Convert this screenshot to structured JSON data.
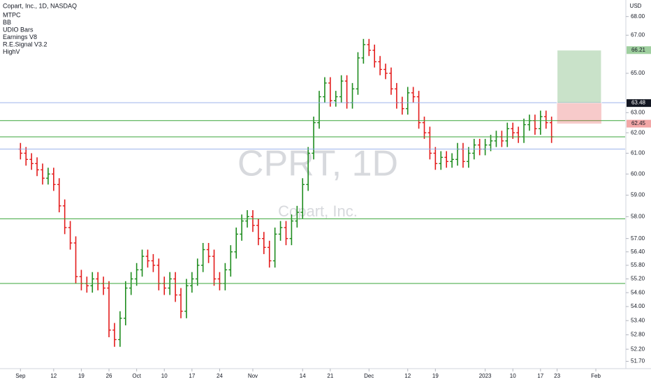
{
  "chart_data": {
    "type": "ohlc",
    "title": "Copart, Inc., 1D, NASDAQ",
    "indicators": [
      "MTPC",
      "BB",
      "UDIO Bars",
      "Earnings V8",
      "R.E.Signal V3.2",
      "HighV"
    ],
    "watermark": "CPRT, 1D",
    "watermark_subtitle": "Copart, Inc.",
    "currency": "USD",
    "log_scale": true,
    "up_color": "#1e8c1e",
    "down_color": "#e31b1b",
    "open": [
      61.2,
      61.0,
      60.7,
      60.5,
      60.2,
      59.8,
      60.0,
      59.5,
      58.5,
      57.5,
      56.8,
      55.3,
      55.0,
      54.9,
      55.2,
      55.0,
      54.8,
      53.0,
      52.6,
      53.5,
      54.8,
      55.2,
      55.6,
      56.2,
      56.0,
      55.8,
      55.0,
      54.8,
      55.2,
      54.5,
      53.8,
      54.9,
      55.2,
      55.8,
      56.5,
      56.2,
      55.2,
      55.0,
      55.6,
      56.4,
      57.2,
      57.8,
      58.0,
      57.6,
      57.0,
      56.6,
      56.0,
      57.2,
      57.5,
      57.0,
      57.8,
      58.2,
      59.5,
      61.0,
      62.5,
      63.8,
      64.5,
      63.6,
      63.8,
      64.6,
      63.5,
      64.2,
      65.8,
      66.5,
      66.2,
      65.6,
      65.2,
      65.0,
      64.2,
      63.5,
      63.2,
      64.0,
      63.8,
      62.5,
      62.0,
      61.0,
      60.5,
      60.8,
      60.6,
      60.7,
      61.2,
      60.6,
      61.0,
      61.4,
      61.2,
      61.4,
      61.6,
      61.8,
      61.6,
      62.2,
      62.0,
      61.8,
      62.4,
      62.6,
      62.2,
      62.8,
      62.5
    ],
    "high": [
      61.5,
      61.3,
      61.0,
      60.8,
      60.5,
      60.3,
      60.3,
      59.8,
      58.8,
      57.8,
      57.1,
      55.6,
      55.3,
      55.5,
      55.5,
      55.3,
      55.1,
      53.3,
      53.8,
      55.1,
      55.5,
      55.9,
      56.5,
      56.5,
      56.3,
      56.1,
      55.3,
      55.5,
      55.5,
      54.8,
      55.2,
      55.5,
      56.1,
      56.8,
      56.8,
      56.5,
      55.5,
      55.9,
      56.7,
      57.5,
      58.1,
      58.3,
      58.3,
      57.9,
      57.3,
      56.9,
      57.5,
      57.8,
      57.8,
      58.1,
      58.5,
      59.8,
      61.3,
      62.8,
      64.1,
      64.8,
      64.8,
      64.1,
      64.9,
      64.9,
      64.5,
      66.1,
      66.8,
      66.8,
      66.5,
      65.9,
      65.5,
      65.3,
      64.5,
      63.8,
      64.3,
      64.3,
      64.1,
      62.8,
      62.3,
      61.3,
      61.1,
      61.1,
      61.0,
      61.5,
      61.5,
      61.3,
      61.7,
      61.7,
      61.7,
      61.9,
      62.1,
      62.1,
      62.5,
      62.5,
      62.3,
      62.7,
      62.9,
      62.9,
      63.1,
      63.1,
      62.8
    ],
    "low": [
      60.7,
      60.4,
      60.2,
      59.9,
      59.5,
      59.5,
      59.2,
      58.2,
      57.2,
      56.5,
      55.0,
      54.7,
      54.6,
      54.6,
      54.7,
      54.5,
      52.7,
      52.3,
      52.3,
      53.2,
      54.5,
      54.9,
      55.3,
      55.7,
      55.5,
      54.7,
      54.5,
      54.5,
      54.2,
      53.5,
      53.5,
      54.6,
      54.9,
      55.5,
      55.9,
      54.9,
      54.7,
      54.7,
      55.3,
      56.1,
      56.9,
      57.5,
      57.3,
      56.7,
      56.3,
      55.7,
      55.7,
      56.9,
      56.7,
      56.7,
      57.5,
      57.9,
      59.2,
      60.7,
      62.2,
      63.5,
      63.3,
      63.3,
      63.5,
      63.2,
      63.2,
      63.9,
      65.5,
      65.9,
      65.3,
      64.9,
      64.7,
      63.9,
      63.2,
      62.9,
      62.9,
      63.5,
      62.2,
      61.7,
      60.7,
      60.2,
      60.2,
      60.3,
      60.3,
      60.4,
      60.3,
      60.3,
      60.7,
      60.9,
      60.9,
      61.1,
      61.3,
      61.3,
      61.3,
      61.7,
      61.5,
      61.5,
      62.1,
      61.9,
      61.9,
      62.2,
      61.5
    ],
    "close": [
      61.0,
      60.7,
      60.5,
      60.2,
      59.8,
      60.0,
      59.5,
      58.5,
      57.5,
      56.8,
      55.3,
      55.0,
      54.9,
      55.2,
      55.0,
      54.8,
      53.0,
      52.6,
      53.5,
      54.8,
      55.2,
      55.6,
      56.2,
      56.0,
      55.8,
      55.0,
      54.8,
      55.2,
      54.5,
      53.8,
      54.9,
      55.2,
      55.8,
      56.5,
      56.2,
      55.2,
      55.0,
      55.6,
      56.4,
      57.2,
      57.8,
      58.0,
      57.6,
      57.0,
      56.6,
      56.0,
      57.2,
      57.5,
      57.0,
      57.8,
      58.2,
      59.5,
      61.0,
      62.5,
      63.8,
      64.5,
      63.6,
      63.8,
      64.6,
      63.5,
      64.2,
      65.8,
      66.5,
      66.2,
      65.6,
      65.2,
      65.0,
      64.2,
      63.5,
      63.2,
      64.0,
      63.8,
      62.5,
      62.0,
      61.0,
      60.5,
      60.8,
      60.6,
      60.7,
      61.2,
      60.6,
      61.0,
      61.4,
      61.2,
      61.4,
      61.6,
      61.8,
      61.6,
      62.2,
      62.0,
      61.8,
      62.4,
      62.6,
      62.2,
      62.8,
      62.5,
      61.8
    ],
    "xlim": [
      -3.7,
      109.3
    ],
    "xticks": [
      {
        "value": 0,
        "label": "Sep"
      },
      {
        "value": 6,
        "label": "12"
      },
      {
        "value": 11,
        "label": "19"
      },
      {
        "value": 16,
        "label": "26"
      },
      {
        "value": 21,
        "label": "Oct"
      },
      {
        "value": 26,
        "label": "10"
      },
      {
        "value": 31,
        "label": "17"
      },
      {
        "value": 36,
        "label": "24"
      },
      {
        "value": 42,
        "label": "Nov"
      },
      {
        "value": 51,
        "label": "14"
      },
      {
        "value": 56,
        "label": "21"
      },
      {
        "value": 63,
        "label": "Dec"
      },
      {
        "value": 70,
        "label": "12"
      },
      {
        "value": 75,
        "label": "19"
      },
      {
        "value": 84,
        "label": "2023"
      },
      {
        "value": 89,
        "label": "10"
      },
      {
        "value": 94,
        "label": "17"
      },
      {
        "value": 97,
        "label": "23"
      },
      {
        "value": 104,
        "label": "Feb"
      }
    ],
    "ylim": [
      51.4,
      68.9
    ],
    "yticks": [
      {
        "value": 68,
        "label": "68.00"
      },
      {
        "value": 67,
        "label": "67.00"
      },
      {
        "value": 65,
        "label": "65.00"
      },
      {
        "value": 63,
        "label": "63.00"
      },
      {
        "value": 62,
        "label": "62.00"
      },
      {
        "value": 61,
        "label": "61.00"
      },
      {
        "value": 60,
        "label": "60.00"
      },
      {
        "value": 59,
        "label": "59.00"
      },
      {
        "value": 58,
        "label": "58.00"
      },
      {
        "value": 57,
        "label": "57.00"
      },
      {
        "value": 56.4,
        "label": "56.40"
      },
      {
        "value": 55.8,
        "label": "55.80"
      },
      {
        "value": 55.2,
        "label": "55.20"
      },
      {
        "value": 54.6,
        "label": "54.60"
      },
      {
        "value": 54,
        "label": "54.00"
      },
      {
        "value": 53.4,
        "label": "53.40"
      },
      {
        "value": 52.8,
        "label": "52.80"
      },
      {
        "value": 52.2,
        "label": "52.20"
      },
      {
        "value": 51.7,
        "label": "51.70"
      }
    ],
    "levels": [
      62.6,
      61.8,
      57.9,
      55.0
    ],
    "level_color": "#3aa63a",
    "ref_levels": [
      63.5,
      61.2
    ],
    "ref_color": "#8fa8e8",
    "position": {
      "entry": 63.48,
      "target": 66.21,
      "stop": 62.45,
      "start": 97,
      "end": 105
    },
    "price_labels": [
      {
        "value": 66.21,
        "label": "66.21",
        "color": "#9fcf9f"
      },
      {
        "value": 63.48,
        "label": "63.48",
        "color": "#131722"
      },
      {
        "value": 62.45,
        "label": "62.45",
        "color": "#f2a7a7"
      }
    ]
  }
}
